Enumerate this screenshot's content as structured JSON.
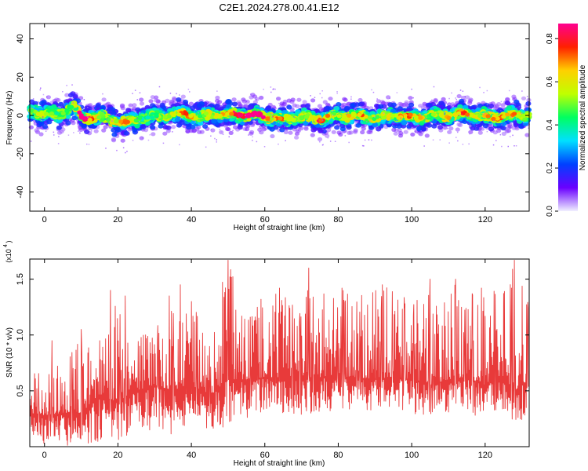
{
  "title": "C2E1.2024.278.00.41.E12",
  "chart_data": [
    {
      "type": "heatmap",
      "title": "C2E1.2024.278.00.41.E12",
      "xlabel": "Height of straight line (km)",
      "ylabel": "Frequency (Hz)",
      "xlim": [
        -4,
        132
      ],
      "ylim": [
        -50,
        48
      ],
      "x_ticks": [
        0,
        20,
        40,
        60,
        80,
        100,
        120
      ],
      "y_ticks": [
        -40,
        -20,
        0,
        20,
        40
      ],
      "x_tick_labels": [
        "0",
        "20",
        "40",
        "60",
        "80",
        "100",
        "120"
      ],
      "y_tick_labels": [
        "-40",
        "-20",
        "0",
        "20",
        "40"
      ],
      "grid": false,
      "colormap": [
        "#f0f0ff",
        "#6a00ff",
        "#0040ff",
        "#00e0ff",
        "#00ff60",
        "#c0ff00",
        "#ffd000",
        "#ff2000",
        "#ff0090"
      ],
      "ridge": [
        {
          "x": -4,
          "f": 2.0,
          "a": 0.55
        },
        {
          "x": 0,
          "f": 1.0,
          "a": 0.5
        },
        {
          "x": 4,
          "f": 0.5,
          "a": 0.45
        },
        {
          "x": 8,
          "f": 5.0,
          "a": 0.5
        },
        {
          "x": 10,
          "f": -1.0,
          "a": 0.95
        },
        {
          "x": 16,
          "f": -1.0,
          "a": 0.45
        },
        {
          "x": 22,
          "f": -4.0,
          "a": 0.7
        },
        {
          "x": 26,
          "f": -1.0,
          "a": 0.4
        },
        {
          "x": 30,
          "f": -1.0,
          "a": 0.45
        },
        {
          "x": 34,
          "f": 0.0,
          "a": 0.55
        },
        {
          "x": 38,
          "f": 1.0,
          "a": 0.75
        },
        {
          "x": 42,
          "f": -1.0,
          "a": 0.5
        },
        {
          "x": 48,
          "f": 1.0,
          "a": 0.6
        },
        {
          "x": 52,
          "f": 0.5,
          "a": 0.8
        },
        {
          "x": 58,
          "f": 0.0,
          "a": 0.95
        },
        {
          "x": 62,
          "f": -1.0,
          "a": 0.55
        },
        {
          "x": 64,
          "f": -2.0,
          "a": 0.75
        },
        {
          "x": 68,
          "f": -1.0,
          "a": 0.5
        },
        {
          "x": 72,
          "f": -1.0,
          "a": 0.55
        },
        {
          "x": 75,
          "f": -2.0,
          "a": 0.75
        },
        {
          "x": 80,
          "f": 0.0,
          "a": 0.5
        },
        {
          "x": 86,
          "f": 0.0,
          "a": 0.7
        },
        {
          "x": 90,
          "f": -1.0,
          "a": 0.5
        },
        {
          "x": 96,
          "f": 0.0,
          "a": 0.6
        },
        {
          "x": 100,
          "f": -1.0,
          "a": 0.7
        },
        {
          "x": 105,
          "f": 0.0,
          "a": 0.5
        },
        {
          "x": 110,
          "f": 0.0,
          "a": 0.6
        },
        {
          "x": 114,
          "f": 1.0,
          "a": 0.7
        },
        {
          "x": 118,
          "f": 0.0,
          "a": 0.55
        },
        {
          "x": 122,
          "f": -1.0,
          "a": 0.65
        },
        {
          "x": 126,
          "f": 0.0,
          "a": 0.7
        },
        {
          "x": 132,
          "f": 0.0,
          "a": 0.5
        }
      ],
      "colorbar": {
        "label": "Normalized spectral amplitude",
        "range": [
          0.0,
          0.87
        ],
        "ticks": [
          0.0,
          0.2,
          0.4,
          0.6,
          0.8
        ],
        "tick_labels": [
          "0.0",
          "0.2",
          "0.4",
          "0.6",
          "0.8"
        ]
      }
    },
    {
      "type": "line",
      "xlabel": "Height of straight line (km)",
      "ylabel": "SNR (10 * v/v)",
      "y_multiplier_label": "(x10^4)",
      "xlim": [
        -4,
        132
      ],
      "ylim": [
        0.0,
        1.68
      ],
      "x_ticks": [
        0,
        20,
        40,
        60,
        80,
        100,
        120
      ],
      "y_ticks": [
        0.5,
        1.0,
        1.5
      ],
      "x_tick_labels": [
        "0",
        "20",
        "40",
        "60",
        "80",
        "100",
        "120"
      ],
      "y_tick_labels": [
        "0.5",
        "1.0",
        "1.5"
      ],
      "grid": false,
      "series": [
        {
          "color": "#e83a3a",
          "x": [
            -4,
            0,
            5,
            10,
            15,
            20,
            25,
            30,
            35,
            40,
            45,
            50,
            55,
            60,
            65,
            70,
            72,
            75,
            80,
            85,
            90,
            95,
            100,
            105,
            110,
            115,
            120,
            125,
            128,
            132
          ],
          "min": [
            0.05,
            0.02,
            0.0,
            0.0,
            0.05,
            0.05,
            0.12,
            0.15,
            0.1,
            0.15,
            0.1,
            0.2,
            0.25,
            0.3,
            0.3,
            0.25,
            0.25,
            0.3,
            0.3,
            0.3,
            0.3,
            0.35,
            0.3,
            0.25,
            0.3,
            0.3,
            0.25,
            0.3,
            0.2,
            0.28
          ],
          "mean": [
            0.3,
            0.28,
            0.3,
            0.3,
            0.45,
            0.4,
            0.5,
            0.55,
            0.5,
            0.55,
            0.45,
            0.6,
            0.6,
            0.62,
            0.62,
            0.6,
            0.62,
            0.62,
            0.62,
            0.62,
            0.6,
            0.62,
            0.6,
            0.55,
            0.6,
            0.62,
            0.55,
            0.62,
            0.5,
            0.6
          ],
          "max": [
            0.7,
            0.65,
            0.8,
            1.05,
            0.85,
            1.38,
            0.95,
            1.15,
            1.35,
            1.3,
            1.0,
            1.68,
            1.15,
            1.32,
            1.4,
            1.2,
            1.6,
            1.38,
            1.42,
            1.35,
            1.4,
            1.45,
            1.42,
            1.35,
            1.52,
            1.38,
            1.42,
            1.45,
            1.68,
            1.28
          ],
          "peaks": [
            {
              "x": 2,
              "y": 0.95
            },
            {
              "x": 10,
              "y": 1.05
            },
            {
              "x": 15,
              "y": 0.95
            },
            {
              "x": 18,
              "y": 1.4
            },
            {
              "x": 22,
              "y": 1.35
            },
            {
              "x": 34,
              "y": 1.35
            },
            {
              "x": 37,
              "y": 1.45
            },
            {
              "x": 40,
              "y": 1.3
            },
            {
              "x": 50,
              "y": 1.67
            },
            {
              "x": 59,
              "y": 1.32
            },
            {
              "x": 64,
              "y": 1.42
            },
            {
              "x": 72,
              "y": 1.6
            },
            {
              "x": 81,
              "y": 1.42
            },
            {
              "x": 92,
              "y": 1.45
            },
            {
              "x": 105,
              "y": 1.5
            },
            {
              "x": 112,
              "y": 1.5
            },
            {
              "x": 119,
              "y": 1.42
            },
            {
              "x": 128,
              "y": 1.67
            }
          ]
        }
      ]
    }
  ]
}
